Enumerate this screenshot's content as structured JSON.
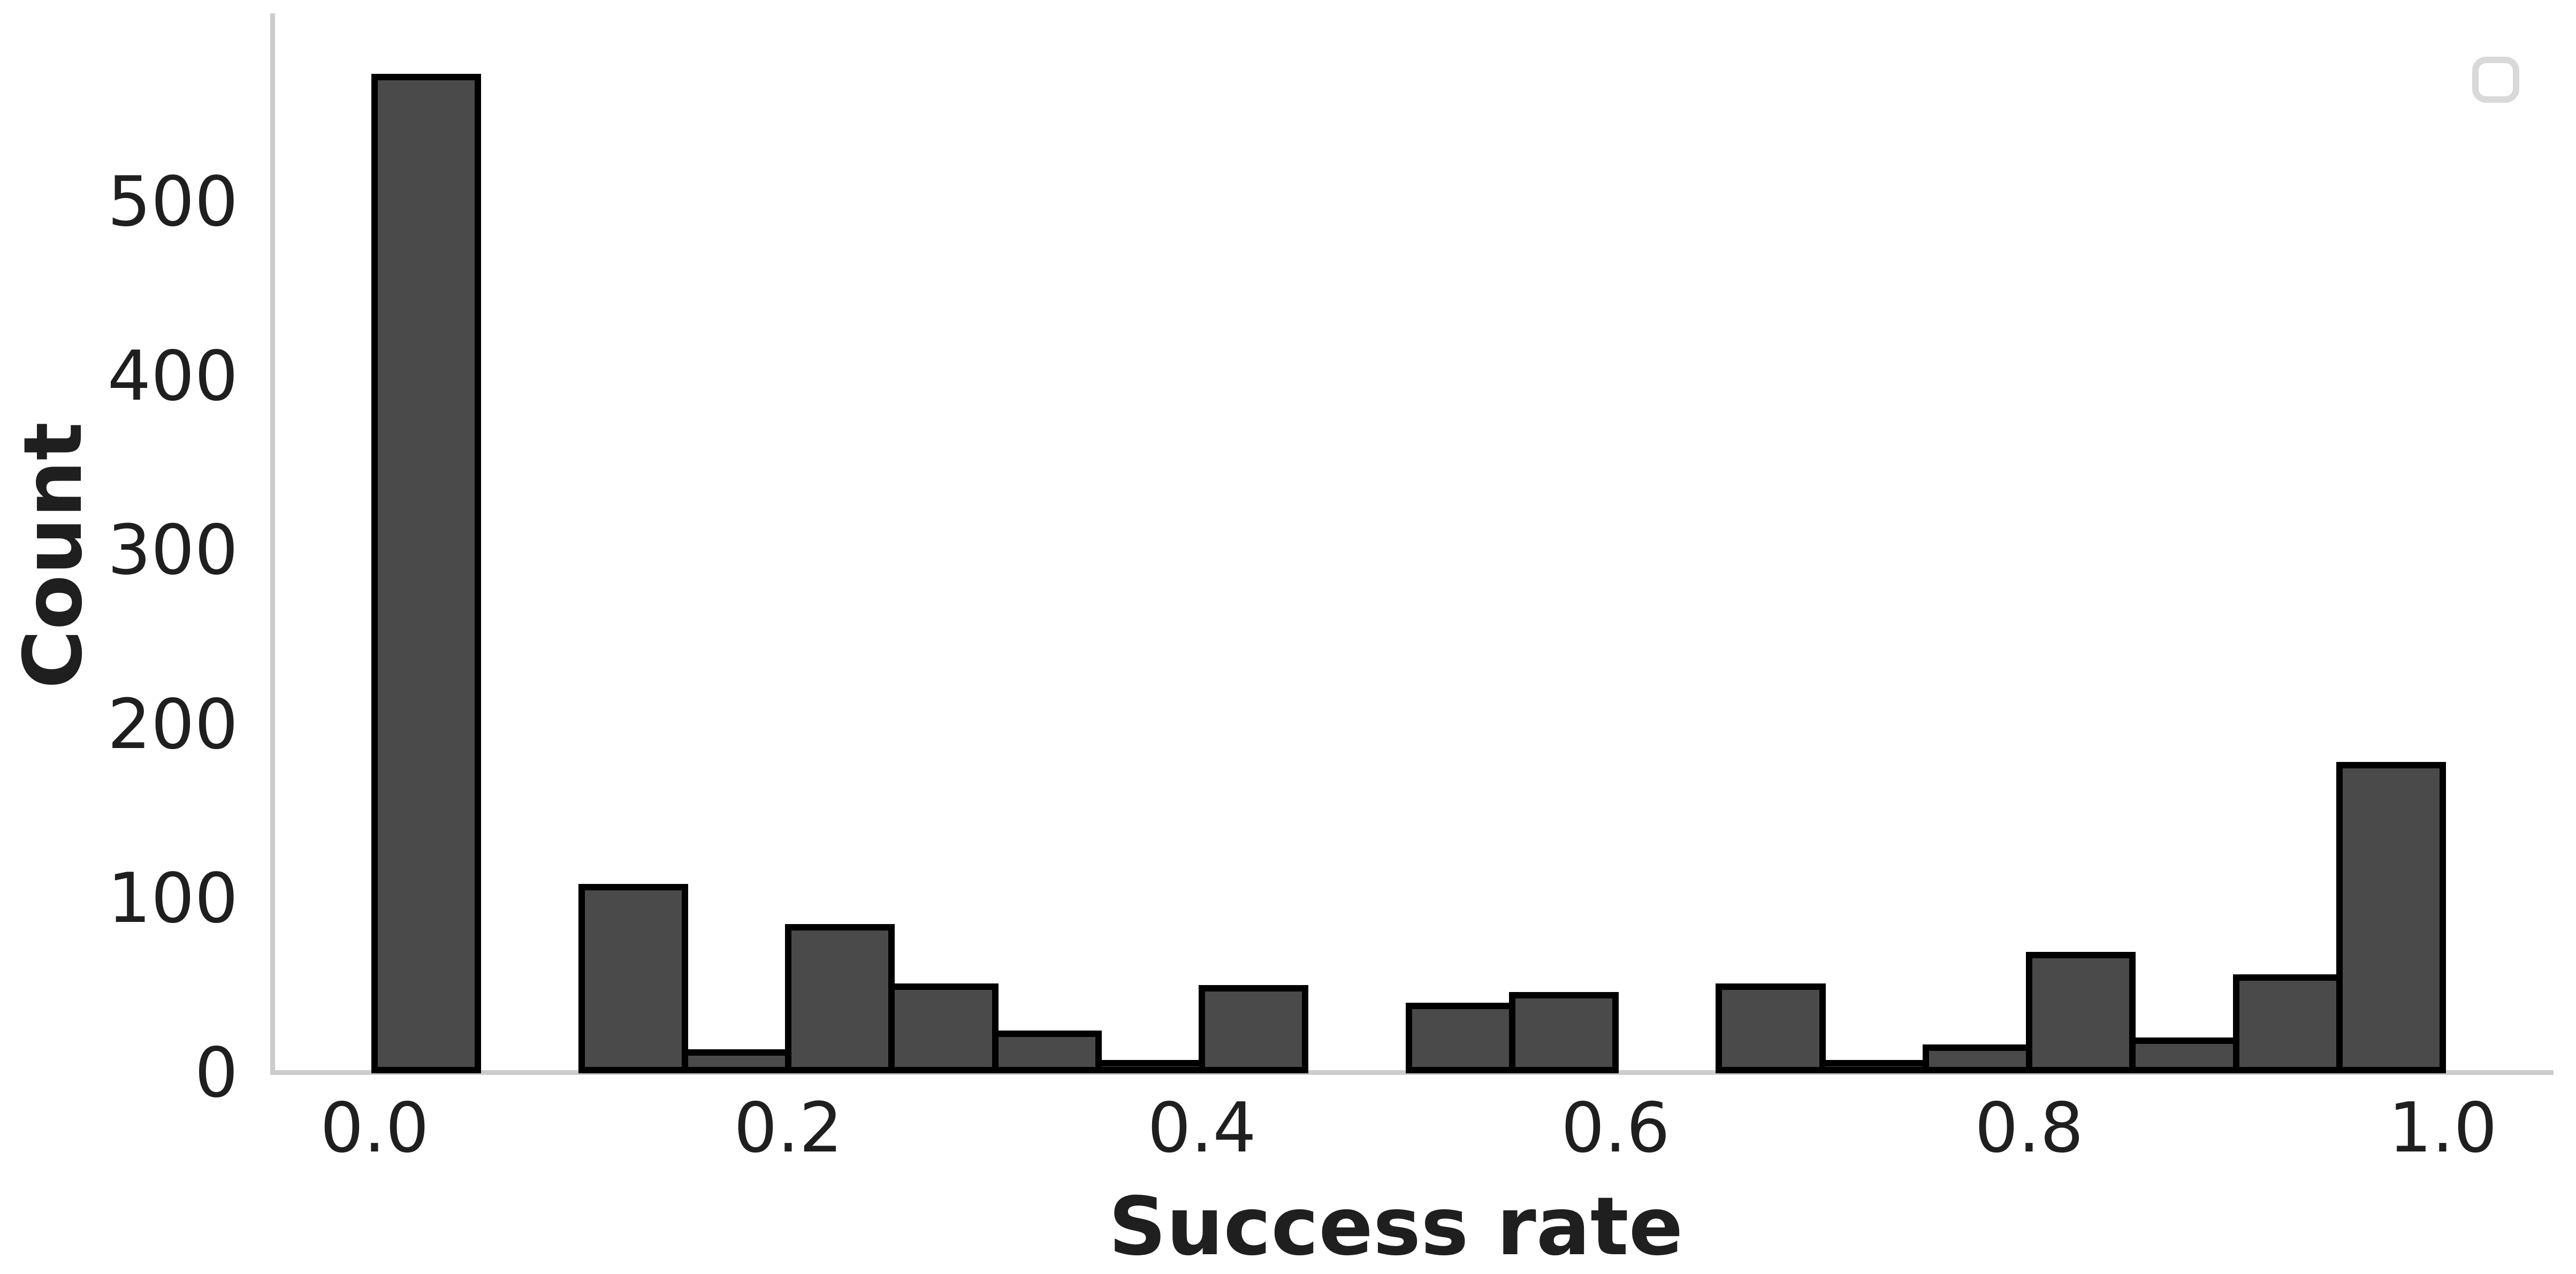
{
  "chart_data": {
    "type": "bar",
    "subtype": "histogram",
    "title": "",
    "xlabel": "Success rate",
    "ylabel": "Count",
    "bin_edges": [
      0.0,
      0.05,
      0.1,
      0.15,
      0.2,
      0.25,
      0.3,
      0.35,
      0.4,
      0.45,
      0.5,
      0.55,
      0.6,
      0.65,
      0.7,
      0.75,
      0.8,
      0.85,
      0.9,
      0.95,
      1.0
    ],
    "counts": [
      570,
      0,
      105,
      10,
      82,
      48,
      21,
      4,
      47,
      0,
      37,
      43,
      0,
      48,
      4,
      13,
      66,
      17,
      53,
      175
    ],
    "xticks": [
      0.0,
      0.2,
      0.4,
      0.6,
      0.8,
      1.0
    ],
    "xtick_labels": [
      "0.0",
      "0.2",
      "0.4",
      "0.6",
      "0.8",
      "1.0"
    ],
    "yticks": [
      0,
      100,
      200,
      300,
      400,
      500
    ],
    "ytick_labels": [
      "0",
      "100",
      "200",
      "300",
      "400",
      "500"
    ],
    "xlim": [
      -0.05,
      1.054
    ],
    "ylim": [
      0,
      607
    ],
    "grid": false,
    "legend": {
      "present": true,
      "position": "upper right",
      "entries": []
    },
    "colors": {
      "bar_fill": "#4a4a4a",
      "bar_edge": "#000000",
      "spine": "#cccccc",
      "text": "#1f1f1f",
      "legend_border": "#d9d9d9",
      "background": "#ffffff"
    }
  }
}
